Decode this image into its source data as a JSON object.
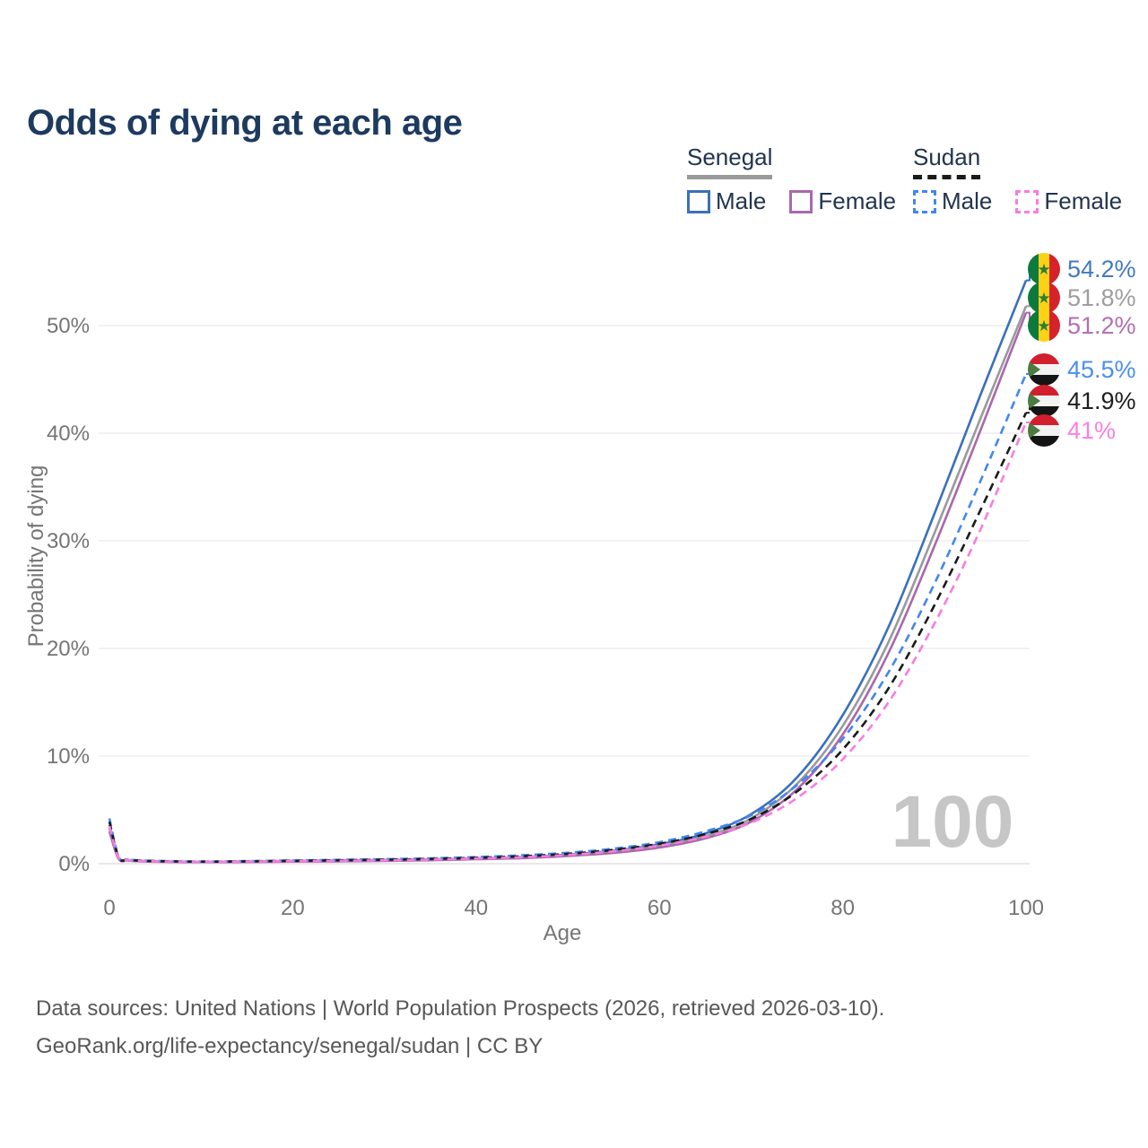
{
  "title": "Odds of dying at each age",
  "legend": {
    "groups": [
      {
        "country": "Senegal",
        "line_style": "solid",
        "items": [
          {
            "label": "Male"
          },
          {
            "label": "Female"
          }
        ]
      },
      {
        "country": "Sudan",
        "line_style": "dashed",
        "items": [
          {
            "label": "Male"
          },
          {
            "label": "Female"
          }
        ]
      }
    ]
  },
  "flags": {
    "senegal": {
      "bands": [
        "#0d7a3d",
        "#fcd116",
        "#d6232b"
      ],
      "star_glyph": "★",
      "star_color": "#2e7d32"
    },
    "sudan": {
      "bands": [
        "#d21f2e",
        "#f2f2f2",
        "#141414"
      ],
      "triangle": "#4a7c3f"
    }
  },
  "chart_data": {
    "type": "line",
    "title": "Odds of dying at each age",
    "xlabel": "Age",
    "ylabel": "Probability of dying",
    "watermark": "100",
    "xlim": [
      0,
      100
    ],
    "ylim": [
      0,
      56
    ],
    "grid": "horizontal",
    "x_ticks": [
      0,
      20,
      40,
      60,
      80,
      100
    ],
    "y_ticks": [
      {
        "value": 0,
        "label": "0%"
      },
      {
        "value": 10,
        "label": "10%"
      },
      {
        "value": 20,
        "label": "20%"
      },
      {
        "value": 30,
        "label": "30%"
      },
      {
        "value": 40,
        "label": "40%"
      },
      {
        "value": 50,
        "label": "50%"
      }
    ],
    "x": [
      0,
      1,
      2,
      3,
      5,
      10,
      15,
      20,
      25,
      30,
      35,
      40,
      45,
      50,
      55,
      60,
      65,
      70,
      75,
      80,
      85,
      90,
      95,
      100
    ],
    "series": [
      {
        "name": "Senegal Male",
        "country": "Senegal",
        "sex": "Male",
        "flag": "senegal",
        "dash": "solid",
        "color": "#3a70ba",
        "label_color": "#4379c4",
        "end_label": "54.2%",
        "values": [
          3.6,
          0.55,
          0.35,
          0.28,
          0.22,
          0.18,
          0.2,
          0.26,
          0.3,
          0.34,
          0.4,
          0.5,
          0.62,
          0.85,
          1.2,
          1.8,
          2.8,
          4.6,
          8.0,
          13.8,
          22.0,
          32.5,
          43.5,
          54.2
        ]
      },
      {
        "name": "Senegal Both sexes",
        "country": "Senegal",
        "sex": "Both",
        "flag": "senegal",
        "dash": "solid",
        "color": "#9a9a9a",
        "label_color": "#9e9ea0",
        "end_label": "51.8%",
        "values": [
          3.3,
          0.5,
          0.32,
          0.25,
          0.2,
          0.16,
          0.18,
          0.23,
          0.26,
          0.3,
          0.36,
          0.46,
          0.57,
          0.78,
          1.1,
          1.65,
          2.55,
          4.2,
          7.4,
          12.8,
          20.6,
          30.7,
          41.3,
          51.8
        ]
      },
      {
        "name": "Senegal Female",
        "country": "Senegal",
        "sex": "Female",
        "flag": "senegal",
        "dash": "solid",
        "color": "#a968ad",
        "label_color": "#b36fb3",
        "end_label": "51.2%",
        "values": [
          3.0,
          0.45,
          0.3,
          0.23,
          0.18,
          0.15,
          0.16,
          0.19,
          0.22,
          0.26,
          0.32,
          0.42,
          0.52,
          0.72,
          1.0,
          1.5,
          2.35,
          3.9,
          6.9,
          12.0,
          19.6,
          29.5,
          40.2,
          51.2
        ]
      },
      {
        "name": "Sudan Male",
        "country": "Sudan",
        "sex": "Male",
        "flag": "sudan",
        "dash": "dashed",
        "color": "#4286f0",
        "label_color": "#4b8ff0",
        "end_label": "45.5%",
        "values": [
          4.2,
          0.65,
          0.4,
          0.32,
          0.26,
          0.2,
          0.24,
          0.3,
          0.36,
          0.42,
          0.5,
          0.62,
          0.78,
          1.02,
          1.4,
          2.0,
          3.0,
          4.5,
          7.3,
          11.6,
          17.8,
          26.0,
          35.5,
          45.5
        ]
      },
      {
        "name": "Sudan Both sexes",
        "country": "Sudan",
        "sex": "Both",
        "flag": "sudan",
        "dash": "dashed",
        "color": "#1a1a1a",
        "label_color": "#1f1f1f",
        "end_label": "41.9%",
        "values": [
          3.9,
          0.6,
          0.37,
          0.3,
          0.24,
          0.19,
          0.22,
          0.27,
          0.32,
          0.37,
          0.44,
          0.55,
          0.69,
          0.92,
          1.28,
          1.85,
          2.75,
          4.15,
          6.7,
          10.6,
          16.3,
          24.0,
          32.8,
          41.9
        ]
      },
      {
        "name": "Sudan Female",
        "country": "Sudan",
        "sex": "Female",
        "flag": "sudan",
        "dash": "dashed",
        "color": "#f97ce0",
        "label_color": "#fb80e4",
        "end_label": "41%",
        "values": [
          3.5,
          0.55,
          0.34,
          0.27,
          0.22,
          0.18,
          0.2,
          0.23,
          0.27,
          0.31,
          0.38,
          0.48,
          0.6,
          0.82,
          1.15,
          1.68,
          2.5,
          3.8,
          6.1,
          9.7,
          15.0,
          22.3,
          31.0,
          41.0
        ]
      }
    ]
  },
  "footer": {
    "line1": "Data sources: United Nations | World Population Prospects (2026, retrieved 2026-03-10).",
    "line2": "GeoRank.org/life-expectancy/senegal/sudan | CC BY"
  }
}
